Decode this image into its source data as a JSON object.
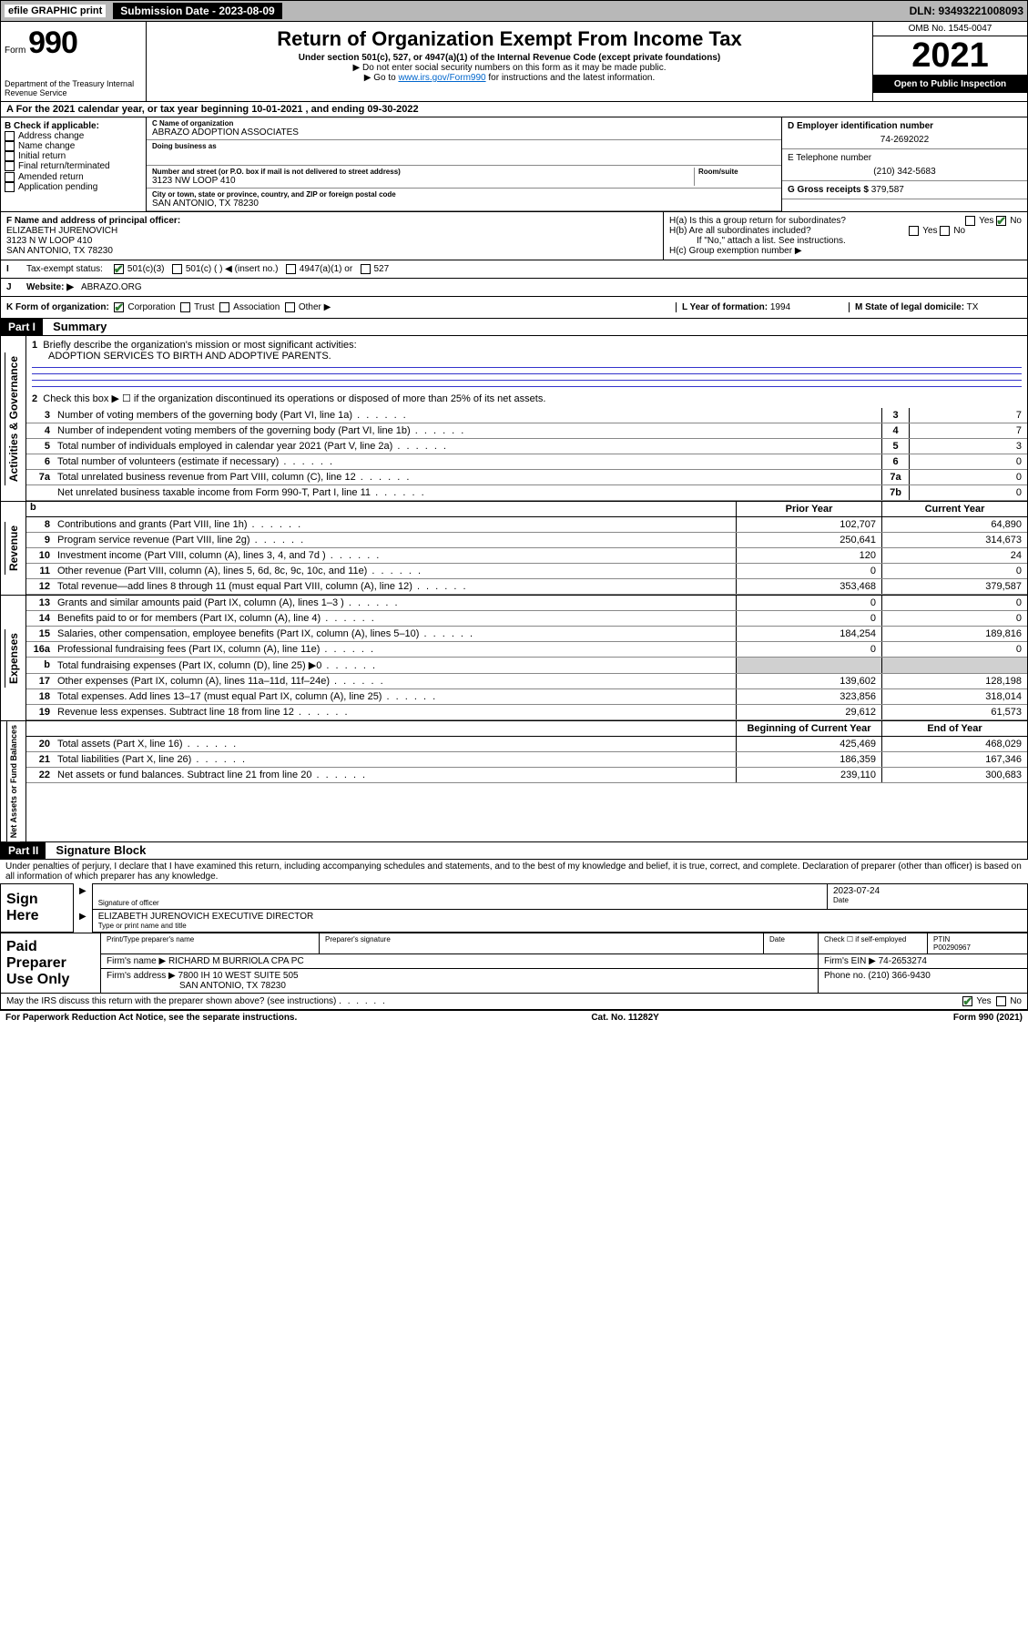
{
  "topbar": {
    "efile": "efile GRAPHIC print",
    "submission_label": "Submission Date - 2023-08-09",
    "dln_label": "DLN: 93493221008093"
  },
  "header": {
    "form_label": "Form",
    "form_number": "990",
    "dept": "Department of the Treasury\nInternal Revenue Service",
    "title": "Return of Organization Exempt From Income Tax",
    "sub1": "Under section 501(c), 527, or 4947(a)(1) of the Internal Revenue Code (except private foundations)",
    "sub2": "▶ Do not enter social security numbers on this form as it may be made public.",
    "sub3_pre": "▶ Go to ",
    "sub3_link": "www.irs.gov/Form990",
    "sub3_post": " for instructions and the latest information.",
    "omb": "OMB No. 1545-0047",
    "year": "2021",
    "inspect": "Open to Public Inspection"
  },
  "a_line": "A For the 2021 calendar year, or tax year beginning 10-01-2021    , and ending 09-30-2022",
  "b": {
    "header": "B Check if applicable:",
    "items": [
      "Address change",
      "Name change",
      "Initial return",
      "Final return/terminated",
      "Amended return",
      "Application pending"
    ]
  },
  "c": {
    "name_label": "C Name of organization",
    "name": "ABRAZO ADOPTION ASSOCIATES",
    "dba_label": "Doing business as",
    "dba": "",
    "addr_label": "Number and street (or P.O. box if mail is not delivered to street address)",
    "addr": "3123 NW LOOP 410",
    "room_label": "Room/suite",
    "city_label": "City or town, state or province, country, and ZIP or foreign postal code",
    "city": "SAN ANTONIO, TX  78230"
  },
  "d": {
    "label": "D Employer identification number",
    "value": "74-2692022"
  },
  "e": {
    "label": "E Telephone number",
    "value": "(210) 342-5683"
  },
  "g": {
    "label": "G Gross receipts $",
    "value": "379,587"
  },
  "f": {
    "label": "F Name and address of principal officer:",
    "name": "ELIZABETH JURENOVICH",
    "addr": "3123 N W LOOP 410",
    "city": "SAN ANTONIO, TX  78230"
  },
  "h": {
    "ha": "H(a)  Is this a group return for subordinates?",
    "hb": "H(b)  Are all subordinates included?",
    "hb_note": "If \"No,\" attach a list. See instructions.",
    "hc": "H(c)  Group exemption number ▶"
  },
  "i": {
    "label": "Tax-exempt status:",
    "opts": [
      "501(c)(3)",
      "501(c) (   ) ◀ (insert no.)",
      "4947(a)(1) or",
      "527"
    ]
  },
  "j": {
    "label": "Website: ▶",
    "value": "ABRAZO.ORG"
  },
  "k": {
    "label": "K Form of organization:",
    "opts": [
      "Corporation",
      "Trust",
      "Association",
      "Other ▶"
    ]
  },
  "l": {
    "label": "L Year of formation:",
    "value": "1994"
  },
  "m": {
    "label": "M State of legal domicile:",
    "value": "TX"
  },
  "part1": {
    "header": "Part I",
    "title": "Summary",
    "q1_label": "Briefly describe the organization's mission or most significant activities:",
    "q1_text": "ADOPTION SERVICES TO BIRTH AND ADOPTIVE PARENTS.",
    "q2": "Check this box ▶ ☐  if the organization discontinued its operations or disposed of more than 25% of its net assets.",
    "lines_gov": [
      {
        "n": "3",
        "t": "Number of voting members of the governing body (Part VI, line 1a)",
        "box": "3",
        "v": "7"
      },
      {
        "n": "4",
        "t": "Number of independent voting members of the governing body (Part VI, line 1b)",
        "box": "4",
        "v": "7"
      },
      {
        "n": "5",
        "t": "Total number of individuals employed in calendar year 2021 (Part V, line 2a)",
        "box": "5",
        "v": "3"
      },
      {
        "n": "6",
        "t": "Total number of volunteers (estimate if necessary)",
        "box": "6",
        "v": "0"
      },
      {
        "n": "7a",
        "t": "Total unrelated business revenue from Part VIII, column (C), line 12",
        "box": "7a",
        "v": "0"
      },
      {
        "n": "",
        "t": "Net unrelated business taxable income from Form 990-T, Part I, line 11",
        "box": "7b",
        "v": "0"
      }
    ],
    "col_headers": {
      "b": "b",
      "prior": "Prior Year",
      "current": "Current Year"
    },
    "revenue": [
      {
        "n": "8",
        "t": "Contributions and grants (Part VIII, line 1h)",
        "p": "102,707",
        "c": "64,890"
      },
      {
        "n": "9",
        "t": "Program service revenue (Part VIII, line 2g)",
        "p": "250,641",
        "c": "314,673"
      },
      {
        "n": "10",
        "t": "Investment income (Part VIII, column (A), lines 3, 4, and 7d )",
        "p": "120",
        "c": "24"
      },
      {
        "n": "11",
        "t": "Other revenue (Part VIII, column (A), lines 5, 6d, 8c, 9c, 10c, and 11e)",
        "p": "0",
        "c": "0"
      },
      {
        "n": "12",
        "t": "Total revenue—add lines 8 through 11 (must equal Part VIII, column (A), line 12)",
        "p": "353,468",
        "c": "379,587"
      }
    ],
    "expenses": [
      {
        "n": "13",
        "t": "Grants and similar amounts paid (Part IX, column (A), lines 1–3 )",
        "p": "0",
        "c": "0"
      },
      {
        "n": "14",
        "t": "Benefits paid to or for members (Part IX, column (A), line 4)",
        "p": "0",
        "c": "0"
      },
      {
        "n": "15",
        "t": "Salaries, other compensation, employee benefits (Part IX, column (A), lines 5–10)",
        "p": "184,254",
        "c": "189,816"
      },
      {
        "n": "16a",
        "t": "Professional fundraising fees (Part IX, column (A), line 11e)",
        "p": "0",
        "c": "0"
      },
      {
        "n": "b",
        "t": "Total fundraising expenses (Part IX, column (D), line 25) ▶0",
        "p": "",
        "c": "",
        "gray": true
      },
      {
        "n": "17",
        "t": "Other expenses (Part IX, column (A), lines 11a–11d, 11f–24e)",
        "p": "139,602",
        "c": "128,198"
      },
      {
        "n": "18",
        "t": "Total expenses. Add lines 13–17 (must equal Part IX, column (A), line 25)",
        "p": "323,856",
        "c": "318,014"
      },
      {
        "n": "19",
        "t": "Revenue less expenses. Subtract line 18 from line 12",
        "p": "29,612",
        "c": "61,573"
      }
    ],
    "net_headers": {
      "beg": "Beginning of Current Year",
      "end": "End of Year"
    },
    "net": [
      {
        "n": "20",
        "t": "Total assets (Part X, line 16)",
        "p": "425,469",
        "c": "468,029"
      },
      {
        "n": "21",
        "t": "Total liabilities (Part X, line 26)",
        "p": "186,359",
        "c": "167,346"
      },
      {
        "n": "22",
        "t": "Net assets or fund balances. Subtract line 21 from line 20",
        "p": "239,110",
        "c": "300,683"
      }
    ],
    "side_labels": {
      "gov": "Activities & Governance",
      "rev": "Revenue",
      "exp": "Expenses",
      "net": "Net Assets or Fund Balances"
    }
  },
  "part2": {
    "header": "Part II",
    "title": "Signature Block",
    "perjury": "Under penalties of perjury, I declare that I have examined this return, including accompanying schedules and statements, and to the best of my knowledge and belief, it is true, correct, and complete. Declaration of preparer (other than officer) is based on all information of which preparer has any knowledge.",
    "sign_here": "Sign Here",
    "sig_officer": "Signature of officer",
    "date_label": "Date",
    "date": "2023-07-24",
    "officer_name": "ELIZABETH JURENOVICH  EXECUTIVE DIRECTOR",
    "type_name": "Type or print name and title",
    "paid": "Paid Preparer Use Only",
    "prep_name_label": "Print/Type preparer's name",
    "prep_sig_label": "Preparer's signature",
    "self_emp": "Check ☐ if self-employed",
    "ptin_label": "PTIN",
    "ptin": "P00290967",
    "firm_name_label": "Firm's name      ▶",
    "firm_name": "RICHARD M BURRIOLA CPA PC",
    "firm_ein_label": "Firm's EIN ▶",
    "firm_ein": "74-2653274",
    "firm_addr_label": "Firm's address ▶",
    "firm_addr1": "7800 IH 10 WEST SUITE 505",
    "firm_addr2": "SAN ANTONIO, TX  78230",
    "phone_label": "Phone no.",
    "phone": "(210) 366-9430",
    "discuss": "May the IRS discuss this return with the preparer shown above? (see instructions)"
  },
  "footer": {
    "left": "For Paperwork Reduction Act Notice, see the separate instructions.",
    "center": "Cat. No. 11282Y",
    "right": "Form 990 (2021)"
  }
}
